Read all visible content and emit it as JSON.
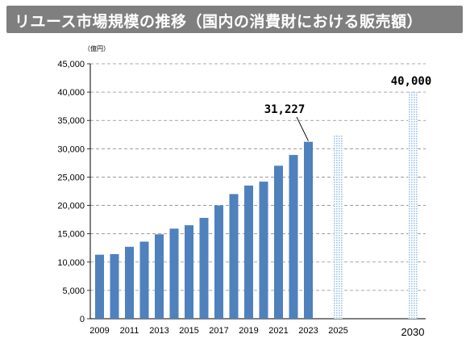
{
  "title": "リユース市場規模の推移（国内の消費財における販売額）",
  "chart_data": {
    "type": "bar",
    "title": "リユース市場規模の推移（国内の消費財における販売額）",
    "unit_label": "（億円）",
    "ylim": [
      0,
      45000
    ],
    "y_ticks": [
      "0",
      "5,000",
      "10,000",
      "15,000",
      "20,000",
      "25,000",
      "30,000",
      "35,000",
      "40,000",
      "45,000"
    ],
    "grid": "horizontal dashed",
    "bar_color": "#4f81bd",
    "forecast_pattern_color": "#9dc3e6",
    "x_tick_labels": [
      "2009",
      "2011",
      "2013",
      "2015",
      "2017",
      "2019",
      "2021",
      "2023",
      "2025",
      "2030"
    ],
    "series": [
      {
        "kind": "actual",
        "years": [
          2009,
          2010,
          2011,
          2012,
          2013,
          2014,
          2015,
          2016,
          2017,
          2018,
          2019,
          2020,
          2021,
          2022,
          2023
        ],
        "values": [
          11300,
          11400,
          12700,
          13600,
          14900,
          15900,
          16500,
          17800,
          20000,
          22000,
          23500,
          24200,
          27000,
          28900,
          31227
        ]
      },
      {
        "kind": "forecast",
        "years": [
          2025,
          2030
        ],
        "values": [
          32500,
          40000
        ]
      }
    ],
    "annotations": [
      {
        "year": 2023,
        "text": "31,227"
      },
      {
        "year": 2030,
        "text": "40,000"
      }
    ]
  }
}
